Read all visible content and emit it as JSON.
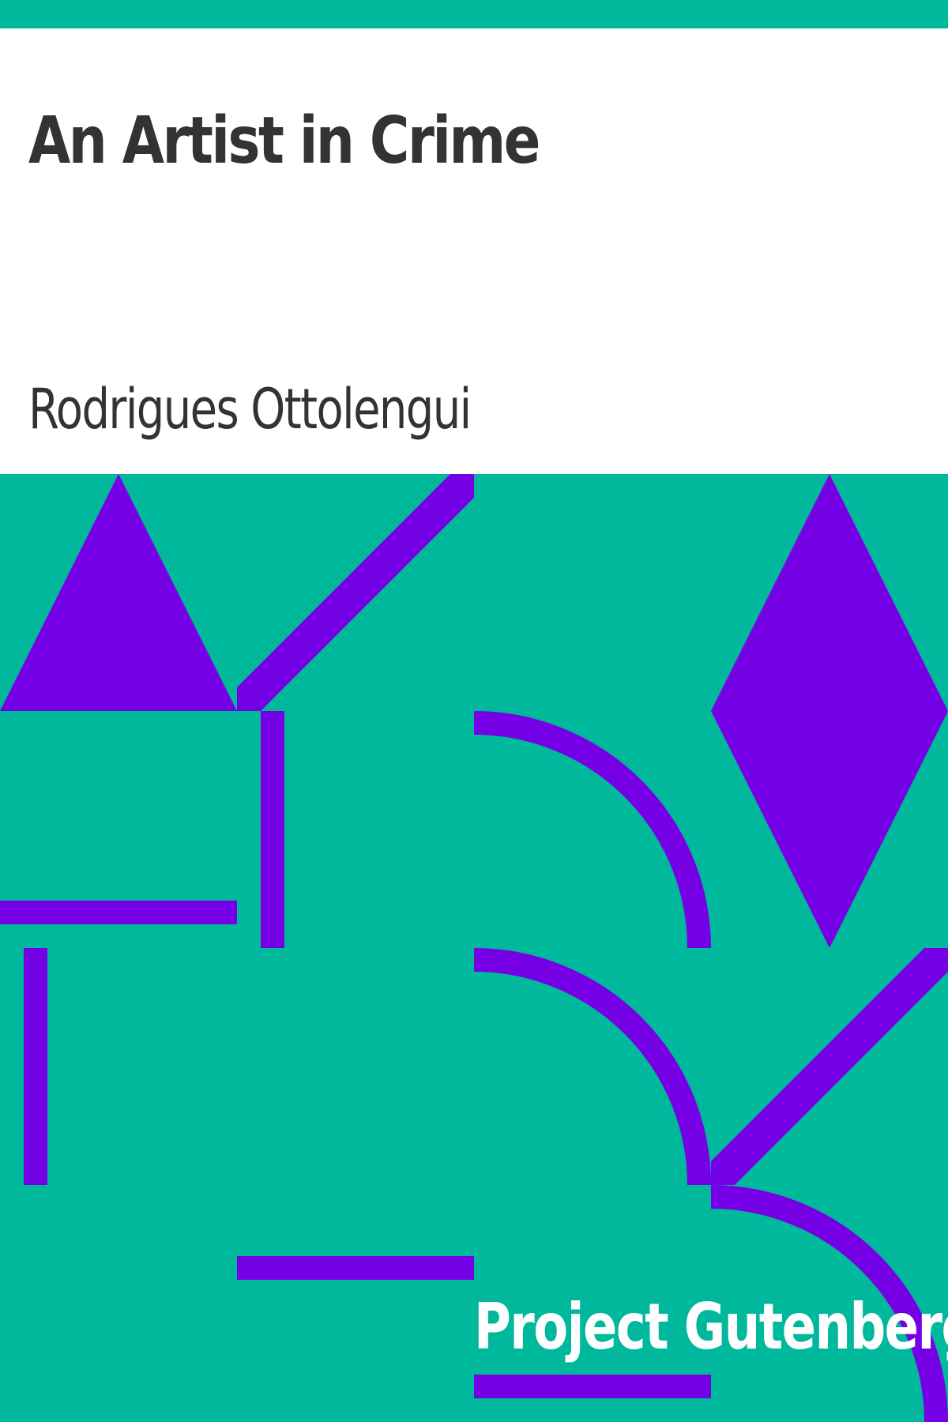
{
  "cover": {
    "title": "An Artist in Crime",
    "author": "Rodrigues Ottolengui",
    "publisher": "Project Gutenberg"
  },
  "colors": {
    "background": "#00B89C",
    "shapes": "#7600E5",
    "panel": "#FFFFFF",
    "title_text": "#333333",
    "publisher_text": "#FFFFFF"
  }
}
